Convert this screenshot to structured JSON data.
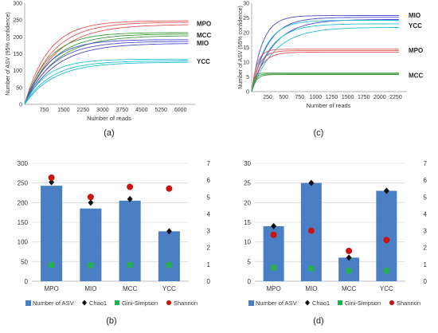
{
  "panels": [
    {
      "letter": "(a)",
      "chart_data": {
        "type": "line",
        "xlabel": "Number of reads",
        "ylabel": "Number of ASV (95% confidence)",
        "xlim": [
          0,
          6500
        ],
        "ylim": [
          0,
          300
        ],
        "xticks": [
          750,
          1500,
          2250,
          3000,
          3750,
          4500,
          5250,
          6000
        ],
        "yticks": [
          0,
          50,
          100,
          150,
          200,
          250,
          300
        ],
        "grid": false,
        "series": [
          {
            "name": "MPO",
            "color": "#e05555",
            "label_y": 240,
            "curves": [
              {
                "asym": 248,
                "k": 0.0011,
                "xmax": 6300
              },
              {
                "asym": 244,
                "k": 0.00095,
                "xmax": 6300
              },
              {
                "asym": 237,
                "k": 0.00085,
                "xmax": 6300
              }
            ]
          },
          {
            "name": "MCC",
            "color": "#3e9a3e",
            "label_y": 205,
            "curves": [
              {
                "asym": 213,
                "k": 0.0011,
                "xmax": 6300
              },
              {
                "asym": 209,
                "k": 0.00095,
                "xmax": 6300
              },
              {
                "asym": 204,
                "k": 0.00085,
                "xmax": 6300
              }
            ]
          },
          {
            "name": "MIO",
            "color": "#4a4ad0",
            "label_y": 182,
            "curves": [
              {
                "asym": 192,
                "k": 0.0011,
                "xmax": 6300
              },
              {
                "asym": 187,
                "k": 0.00095,
                "xmax": 6300
              },
              {
                "asym": 181,
                "k": 0.00085,
                "xmax": 6300
              }
            ]
          },
          {
            "name": "YCC",
            "color": "#22c0d0",
            "label_y": 128,
            "curves": [
              {
                "asym": 134,
                "k": 0.0012,
                "xmax": 6300
              },
              {
                "asym": 129,
                "k": 0.001,
                "xmax": 6300
              },
              {
                "asym": 125,
                "k": 0.0009,
                "xmax": 6300
              }
            ]
          }
        ]
      }
    },
    {
      "letter": "(c)",
      "chart_data": {
        "type": "line",
        "xlabel": "Number of reads",
        "ylabel": "Number of ASV (95% confidence)",
        "xlim": [
          0,
          2400
        ],
        "ylim": [
          0,
          30
        ],
        "xticks": [
          250,
          500,
          750,
          1000,
          1250,
          1500,
          1750,
          2000,
          2250
        ],
        "yticks": [
          0,
          5,
          10,
          15,
          20,
          25,
          30
        ],
        "grid": false,
        "series": [
          {
            "name": "MIO",
            "color": "#4a4ad0",
            "label_y": 26,
            "curves": [
              {
                "asym": 25.8,
                "k": 0.006,
                "xmax": 2300
              },
              {
                "asym": 25.2,
                "k": 0.004,
                "xmax": 2300
              },
              {
                "asym": 24.5,
                "k": 0.003,
                "xmax": 2300
              }
            ]
          },
          {
            "name": "YCC",
            "color": "#22c0d0",
            "label_y": 22.5,
            "curves": [
              {
                "asym": 24.2,
                "k": 0.0045,
                "xmax": 2300
              },
              {
                "asym": 23.0,
                "k": 0.0035,
                "xmax": 2300
              },
              {
                "asym": 21.8,
                "k": 0.0028,
                "xmax": 2300
              }
            ]
          },
          {
            "name": "MPO",
            "color": "#e05555",
            "label_y": 14,
            "curves": [
              {
                "asym": 14.4,
                "k": 0.012,
                "xmax": 2300
              },
              {
                "asym": 13.9,
                "k": 0.009,
                "xmax": 2300
              },
              {
                "asym": 13.4,
                "k": 0.007,
                "xmax": 2300
              }
            ]
          },
          {
            "name": "MCC",
            "color": "#3e9a3e",
            "label_y": 5.6,
            "curves": [
              {
                "asym": 6.3,
                "k": 0.03,
                "xmax": 2300
              },
              {
                "asym": 6.0,
                "k": 0.02,
                "xmax": 2300
              },
              {
                "asym": 5.8,
                "k": 0.015,
                "xmax": 2300
              }
            ]
          }
        ]
      }
    },
    {
      "letter": "(b)",
      "chart_data": {
        "type": "bar",
        "categories": [
          "MPO",
          "MIO",
          "MCC",
          "YCC"
        ],
        "ylim": [
          0,
          300
        ],
        "yticks": [
          0,
          50,
          100,
          150,
          200,
          250,
          300
        ],
        "y2lim": [
          0,
          7
        ],
        "y2ticks": [
          0,
          1,
          2,
          3,
          4,
          5,
          6,
          7
        ],
        "series": [
          {
            "name": "Number of ASV",
            "kind": "bar",
            "axis": "left",
            "color": "#4a7fc4",
            "values": [
              243,
              185,
              205,
              127
            ]
          },
          {
            "name": "Chao1",
            "kind": "diamond",
            "axis": "left",
            "color": "#111111",
            "values": [
              252,
              200,
              209,
              127
            ]
          },
          {
            "name": "Gini-Simpson",
            "kind": "square",
            "axis": "right",
            "color": "#22b14c",
            "values": [
              0.97,
              0.95,
              0.97,
              0.96
            ]
          },
          {
            "name": "Shannon",
            "kind": "circle",
            "axis": "right",
            "color": "#cc1111",
            "values": [
              6.15,
              5.0,
              5.6,
              5.5
            ]
          }
        ]
      }
    },
    {
      "letter": "(d)",
      "chart_data": {
        "type": "bar",
        "categories": [
          "MPO",
          "MIO",
          "MCC",
          "YCC"
        ],
        "ylim": [
          0,
          30
        ],
        "yticks": [
          0,
          5,
          10,
          15,
          20,
          25,
          30
        ],
        "y2lim": [
          0,
          7
        ],
        "y2ticks": [
          0,
          1,
          2,
          3,
          4,
          5,
          6,
          7
        ],
        "series": [
          {
            "name": "Number of ASV",
            "kind": "bar",
            "axis": "left",
            "color": "#4a7fc4",
            "values": [
              14,
              25,
              6,
              23
            ]
          },
          {
            "name": "Chao1",
            "kind": "diamond",
            "axis": "left",
            "color": "#111111",
            "values": [
              14,
              25,
              6,
              23
            ]
          },
          {
            "name": "Gini-Simpson",
            "kind": "square",
            "axis": "right",
            "color": "#22b14c",
            "values": [
              0.8,
              0.75,
              0.62,
              0.62
            ]
          },
          {
            "name": "Shannon",
            "kind": "circle",
            "axis": "right",
            "color": "#cc1111",
            "values": [
              2.75,
              3.0,
              1.8,
              2.45
            ]
          }
        ]
      }
    }
  ]
}
